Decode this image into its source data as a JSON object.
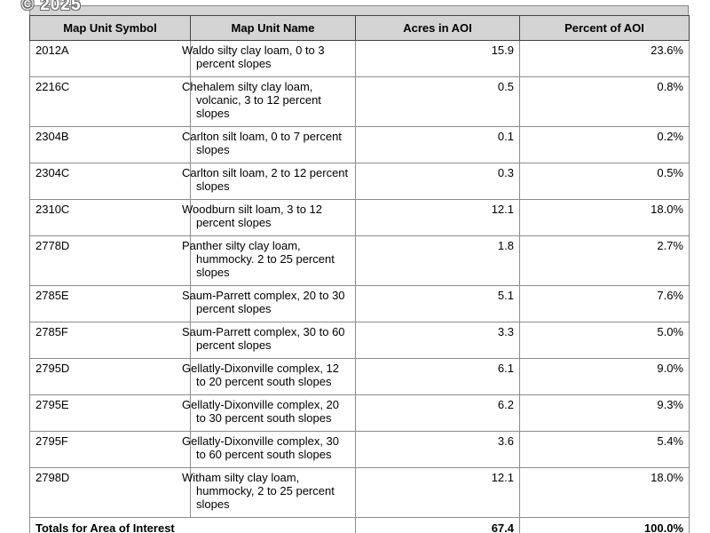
{
  "watermark": "© 2025",
  "table": {
    "headers": [
      "Map Unit Symbol",
      "Map Unit Name",
      "Acres in AOI",
      "Percent of AOI"
    ],
    "rows": [
      {
        "symbol": "2012A",
        "name": "Waldo silty clay loam, 0 to 3 percent slopes",
        "acres": "15.9",
        "percent": "23.6%"
      },
      {
        "symbol": "2216C",
        "name": "Chehalem silty clay loam, volcanic, 3 to 12 percent slopes",
        "acres": "0.5",
        "percent": "0.8%"
      },
      {
        "symbol": "2304B",
        "name": "Carlton silt loam, 0 to 7 percent slopes",
        "acres": "0.1",
        "percent": "0.2%"
      },
      {
        "symbol": "2304C",
        "name": "Carlton silt loam, 2 to 12 percent slopes",
        "acres": "0.3",
        "percent": "0.5%"
      },
      {
        "symbol": "2310C",
        "name": "Woodburn silt loam, 3 to 12 percent slopes",
        "acres": "12.1",
        "percent": "18.0%"
      },
      {
        "symbol": "2778D",
        "name": "Panther silty clay loam, hummocky. 2 to 25 percent slopes",
        "acres": "1.8",
        "percent": "2.7%"
      },
      {
        "symbol": "2785E",
        "name": "Saum-Parrett complex, 20 to 30 percent slopes",
        "acres": "5.1",
        "percent": "7.6%"
      },
      {
        "symbol": "2785F",
        "name": "Saum-Parrett complex, 30 to 60 percent slopes",
        "acres": "3.3",
        "percent": "5.0%"
      },
      {
        "symbol": "2795D",
        "name": "Gellatly-Dixonville complex, 12 to 20 percent south slopes",
        "acres": "6.1",
        "percent": "9.0%"
      },
      {
        "symbol": "2795E",
        "name": "Gellatly-Dixonville complex, 20 to 30 percent south slopes",
        "acres": "6.2",
        "percent": "9.3%"
      },
      {
        "symbol": "2795F",
        "name": "Gellatly-Dixonville complex, 30 to 60 percent south slopes",
        "acres": "3.6",
        "percent": "5.4%"
      },
      {
        "symbol": "2798D",
        "name": "Witham silty clay loam, hummocky, 2 to 25 percent slopes",
        "acres": "12.1",
        "percent": "18.0%"
      }
    ],
    "totals": {
      "label": "Totals for Area of Interest",
      "acres": "67.4",
      "percent": "100.0%"
    }
  },
  "colors": {
    "header_bg": "#d4d4d4",
    "header_border": "#444444",
    "body_border": "#8c8c8c",
    "text": "#000000",
    "page_bg": "#ffffff"
  }
}
